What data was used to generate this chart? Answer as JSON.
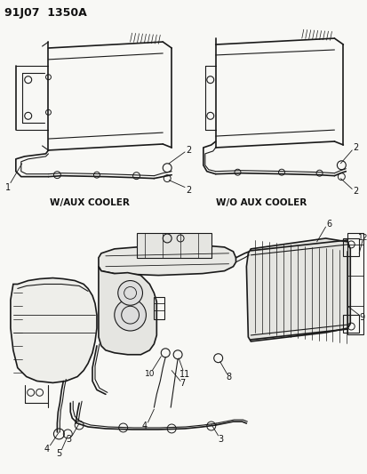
{
  "title_code": "91J07  1350A",
  "label_with_aux": "W/AUX COOLER",
  "label_without_aux": "W/O AUX COOLER",
  "bg_color": "#f5f5f0",
  "line_color": "#1a1a1a",
  "text_color": "#111111",
  "fig_width": 4.14,
  "fig_height": 5.33,
  "dpi": 100
}
